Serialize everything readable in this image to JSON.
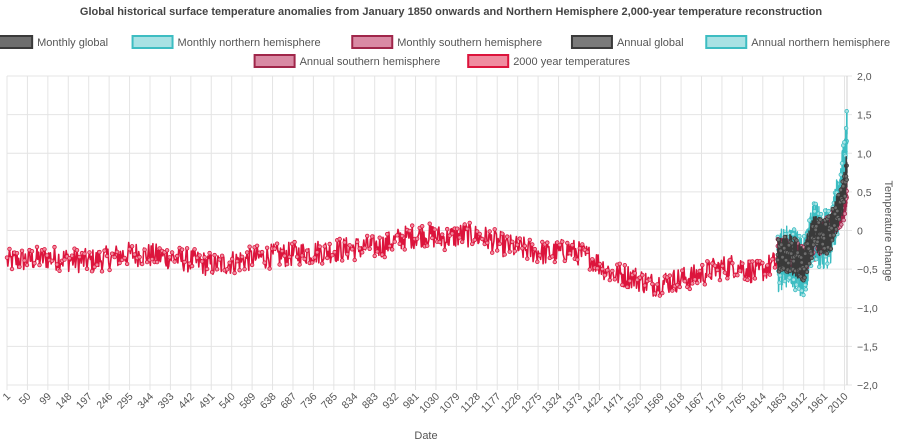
{
  "chart_data": {
    "type": "line",
    "title": "Global historical surface temperature anomalies from January 1850 onwards and Northern Hemisphere 2,000-year temperature reconstruction",
    "xlabel": "Date",
    "ylabel": "Temperature change",
    "ylim": [
      -2.0,
      2.0
    ],
    "y_ticks": [
      "2,0",
      "1,5",
      "1,0",
      "0,5",
      "0",
      "−0,5",
      "−1,0",
      "−1,5",
      "−2,0"
    ],
    "y_tick_values": [
      2.0,
      1.5,
      1.0,
      0.5,
      0,
      -0.5,
      -1.0,
      -1.5,
      -2.0
    ],
    "x_range": [
      1,
      2016
    ],
    "x_ticks": [
      "1",
      "50",
      "99",
      "148",
      "197",
      "246",
      "295",
      "344",
      "393",
      "442",
      "491",
      "540",
      "589",
      "638",
      "687",
      "736",
      "785",
      "834",
      "883",
      "932",
      "981",
      "1030",
      "1079",
      "1128",
      "1177",
      "1226",
      "1275",
      "1324",
      "1373",
      "1422",
      "1471",
      "1520",
      "1569",
      "1618",
      "1667",
      "1716",
      "1765",
      "1814",
      "1863",
      "1912",
      "1961",
      "2010"
    ],
    "legend_placement": "top",
    "grid": true,
    "series": [
      {
        "name": "Monthly global",
        "color": "#3a3a3a",
        "fill": "#6e6e6e",
        "x_start": 1850,
        "x_end": 2016,
        "anchors": {
          "x": [
            1850,
            1880,
            1910,
            1940,
            1950,
            1975,
            1990,
            2000,
            2010,
            2016
          ],
          "y": [
            -0.35,
            -0.3,
            -0.45,
            0.0,
            -0.1,
            -0.05,
            0.2,
            0.35,
            0.55,
            0.85
          ]
        }
      },
      {
        "name": "Monthly northern hemisphere",
        "color": "#3dbdc2",
        "fill": "#a8e2e4",
        "x_start": 1850,
        "x_end": 2016,
        "anchors": {
          "x": [
            1850,
            1880,
            1910,
            1940,
            1950,
            1975,
            1990,
            2000,
            2010,
            2016
          ],
          "y": [
            -0.4,
            -0.3,
            -0.5,
            0.05,
            -0.1,
            -0.1,
            0.25,
            0.5,
            0.8,
            1.3
          ]
        }
      },
      {
        "name": "Monthly southern hemisphere",
        "color": "#a0264a",
        "fill": "#d98aa4",
        "x_start": 1850,
        "x_end": 2016,
        "anchors": {
          "x": [
            1850,
            1880,
            1910,
            1940,
            1950,
            1975,
            1990,
            2000,
            2010,
            2016
          ],
          "y": [
            -0.3,
            -0.3,
            -0.4,
            -0.05,
            -0.1,
            0.0,
            0.15,
            0.25,
            0.35,
            0.5
          ]
        }
      },
      {
        "name": "Annual global",
        "color": "#3a3a3a",
        "fill": "#7a7a7a",
        "x_start": 1850,
        "x_end": 2016,
        "anchors": {
          "x": [
            1850,
            1880,
            1910,
            1940,
            1950,
            1975,
            1990,
            2000,
            2010,
            2016
          ],
          "y": [
            -0.35,
            -0.3,
            -0.45,
            0.0,
            -0.1,
            -0.05,
            0.2,
            0.35,
            0.55,
            0.85
          ]
        }
      },
      {
        "name": "Annual northern hemisphere",
        "color": "#3dbdc2",
        "fill": "#a8e2e4",
        "x_start": 1850,
        "x_end": 2016,
        "anchors": {
          "x": [
            1850,
            1880,
            1910,
            1940,
            1950,
            1975,
            1990,
            2000,
            2010,
            2016
          ],
          "y": [
            -0.4,
            -0.3,
            -0.5,
            0.05,
            -0.1,
            -0.1,
            0.25,
            0.5,
            0.8,
            1.3
          ]
        }
      },
      {
        "name": "Annual southern hemisphere",
        "color": "#a0264a",
        "fill": "#d98aa4",
        "x_start": 1850,
        "x_end": 2016,
        "anchors": {
          "x": [
            1850,
            1880,
            1910,
            1940,
            1950,
            1975,
            1990,
            2000,
            2010,
            2016
          ],
          "y": [
            -0.3,
            -0.3,
            -0.4,
            -0.05,
            -0.1,
            0.0,
            0.15,
            0.25,
            0.35,
            0.5
          ]
        }
      },
      {
        "name": "2000 year temperatures",
        "color": "#dc143c",
        "fill": "#f08ca0",
        "x_start": 1,
        "x_end": 1979,
        "anchors": {
          "x": [
            1,
            100,
            200,
            300,
            400,
            500,
            600,
            700,
            800,
            900,
            950,
            1000,
            1050,
            1100,
            1150,
            1200,
            1250,
            1300,
            1350,
            1400,
            1450,
            1500,
            1550,
            1600,
            1650,
            1700,
            1750,
            1800,
            1850,
            1900,
            1950,
            1979
          ],
          "y": [
            -0.4,
            -0.35,
            -0.4,
            -0.3,
            -0.35,
            -0.45,
            -0.35,
            -0.3,
            -0.25,
            -0.2,
            -0.1,
            -0.05,
            -0.1,
            -0.05,
            -0.1,
            -0.2,
            -0.25,
            -0.3,
            -0.25,
            -0.35,
            -0.55,
            -0.6,
            -0.7,
            -0.65,
            -0.6,
            -0.5,
            -0.45,
            -0.55,
            -0.4,
            -0.35,
            -0.2,
            -0.1
          ]
        }
      }
    ]
  }
}
